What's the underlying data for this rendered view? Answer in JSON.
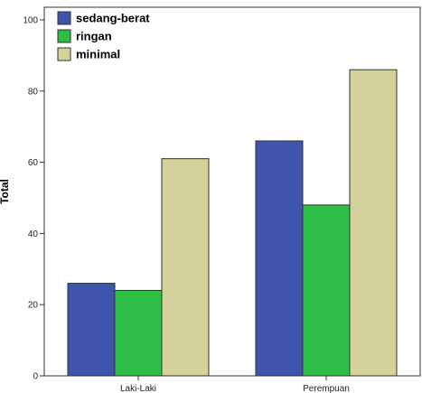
{
  "chart_data": {
    "type": "bar",
    "categories": [
      "Laki-Laki",
      "Perempuan"
    ],
    "series": [
      {
        "name": "sedang-berat",
        "color": "#3E55AB",
        "values": [
          26,
          66
        ]
      },
      {
        "name": "ringan",
        "color": "#2EBD45",
        "values": [
          24,
          48
        ]
      },
      {
        "name": "minimal",
        "color": "#D5D19B",
        "values": [
          61,
          86
        ]
      }
    ],
    "ylabel": "Total",
    "ylim": [
      0,
      100
    ],
    "yticks": [
      0,
      20,
      40,
      60,
      80,
      100
    ],
    "grid": false,
    "legend_position": "top-left"
  }
}
